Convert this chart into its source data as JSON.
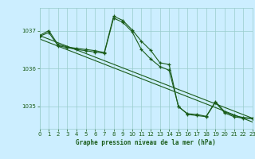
{
  "title": "Graphe pression niveau de la mer (hPa)",
  "background_color": "#cceeff",
  "grid_color": "#99cccc",
  "line_color": "#1a5c1a",
  "x_min": 0,
  "x_max": 23,
  "y_min": 1034.4,
  "y_max": 1037.6,
  "yticks": [
    1035,
    1036,
    1037
  ],
  "xticks": [
    0,
    1,
    2,
    3,
    4,
    5,
    6,
    7,
    8,
    9,
    10,
    11,
    12,
    13,
    14,
    15,
    16,
    17,
    18,
    19,
    20,
    21,
    22,
    23
  ],
  "series1_x": [
    0,
    1,
    2,
    3,
    4,
    5,
    6,
    7,
    8,
    9,
    10,
    11,
    12,
    13,
    14,
    15,
    16,
    17,
    18,
    19,
    20,
    21,
    22,
    23
  ],
  "series1_y": [
    1036.85,
    1036.95,
    1036.6,
    1036.55,
    1036.5,
    1036.47,
    1036.43,
    1036.4,
    1037.33,
    1037.22,
    1036.97,
    1036.5,
    1036.25,
    1036.05,
    1035.95,
    1035.0,
    1034.78,
    1034.75,
    1034.72,
    1035.1,
    1034.82,
    1034.72,
    1034.68,
    1034.67
  ],
  "series2_x": [
    0,
    1,
    2,
    3,
    4,
    5,
    6,
    7,
    8,
    9,
    10,
    11,
    12,
    13,
    14,
    15,
    16,
    17,
    18,
    19,
    20,
    21,
    22,
    23
  ],
  "series2_y": [
    1036.87,
    1037.0,
    1036.63,
    1036.57,
    1036.53,
    1036.5,
    1036.47,
    1036.42,
    1037.38,
    1037.27,
    1037.02,
    1036.72,
    1036.48,
    1036.15,
    1036.1,
    1034.98,
    1034.8,
    1034.78,
    1034.73,
    1035.12,
    1034.85,
    1034.75,
    1034.7,
    1034.68
  ],
  "trend1_x": [
    0,
    23
  ],
  "trend1_y": [
    1036.87,
    1034.68
  ],
  "trend2_x": [
    0,
    23
  ],
  "trend2_y": [
    1036.78,
    1034.58
  ]
}
